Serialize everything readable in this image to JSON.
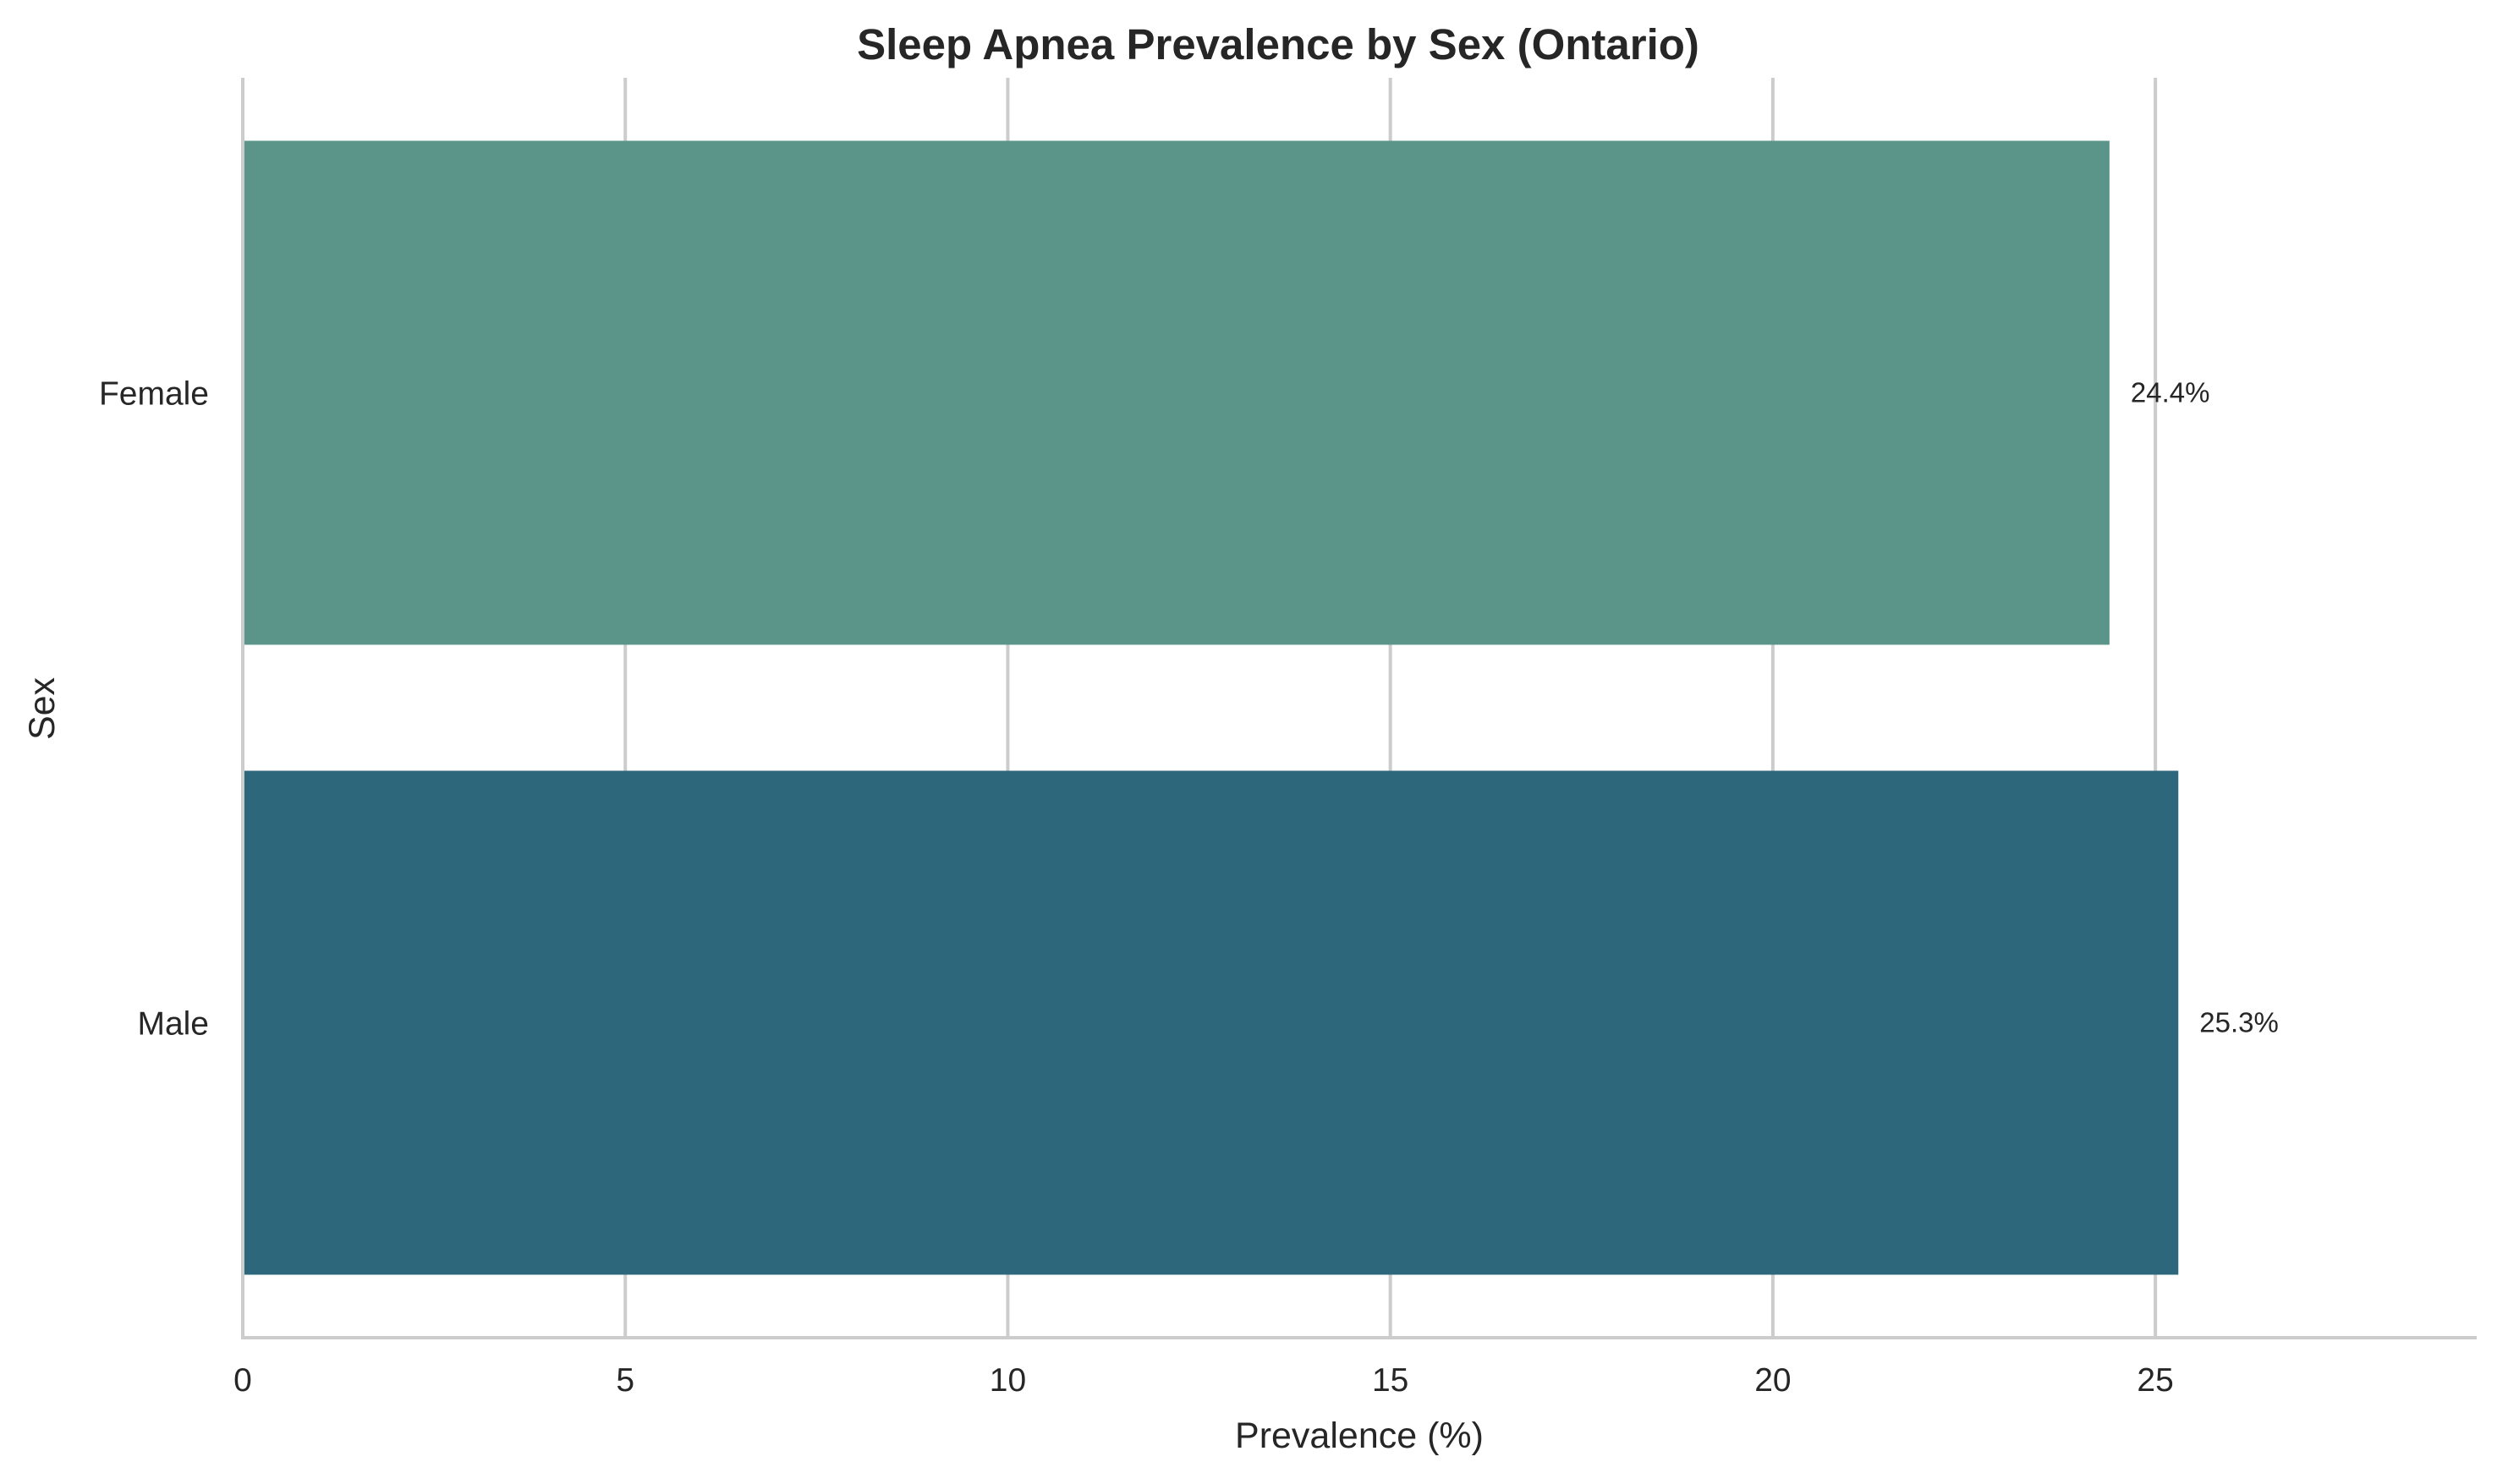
{
  "chart_data": {
    "type": "bar",
    "orientation": "horizontal",
    "title": "Sleep Apnea Prevalence by Sex (Ontario)",
    "xlabel": "Prevalence (%)",
    "ylabel": "Sex",
    "categories": [
      "Female",
      "Male"
    ],
    "values": [
      24.4,
      25.3
    ],
    "data_labels": [
      "24.4%",
      "25.3%"
    ],
    "colors": [
      "#5b9489",
      "#2d677c"
    ],
    "xlim": [
      0,
      29.2
    ],
    "xticks": [
      0,
      5,
      10,
      15,
      20,
      25
    ],
    "xtick_labels": [
      "0",
      "5",
      "10",
      "15",
      "20",
      "25"
    ],
    "grid": "vertical",
    "legend": "none"
  }
}
